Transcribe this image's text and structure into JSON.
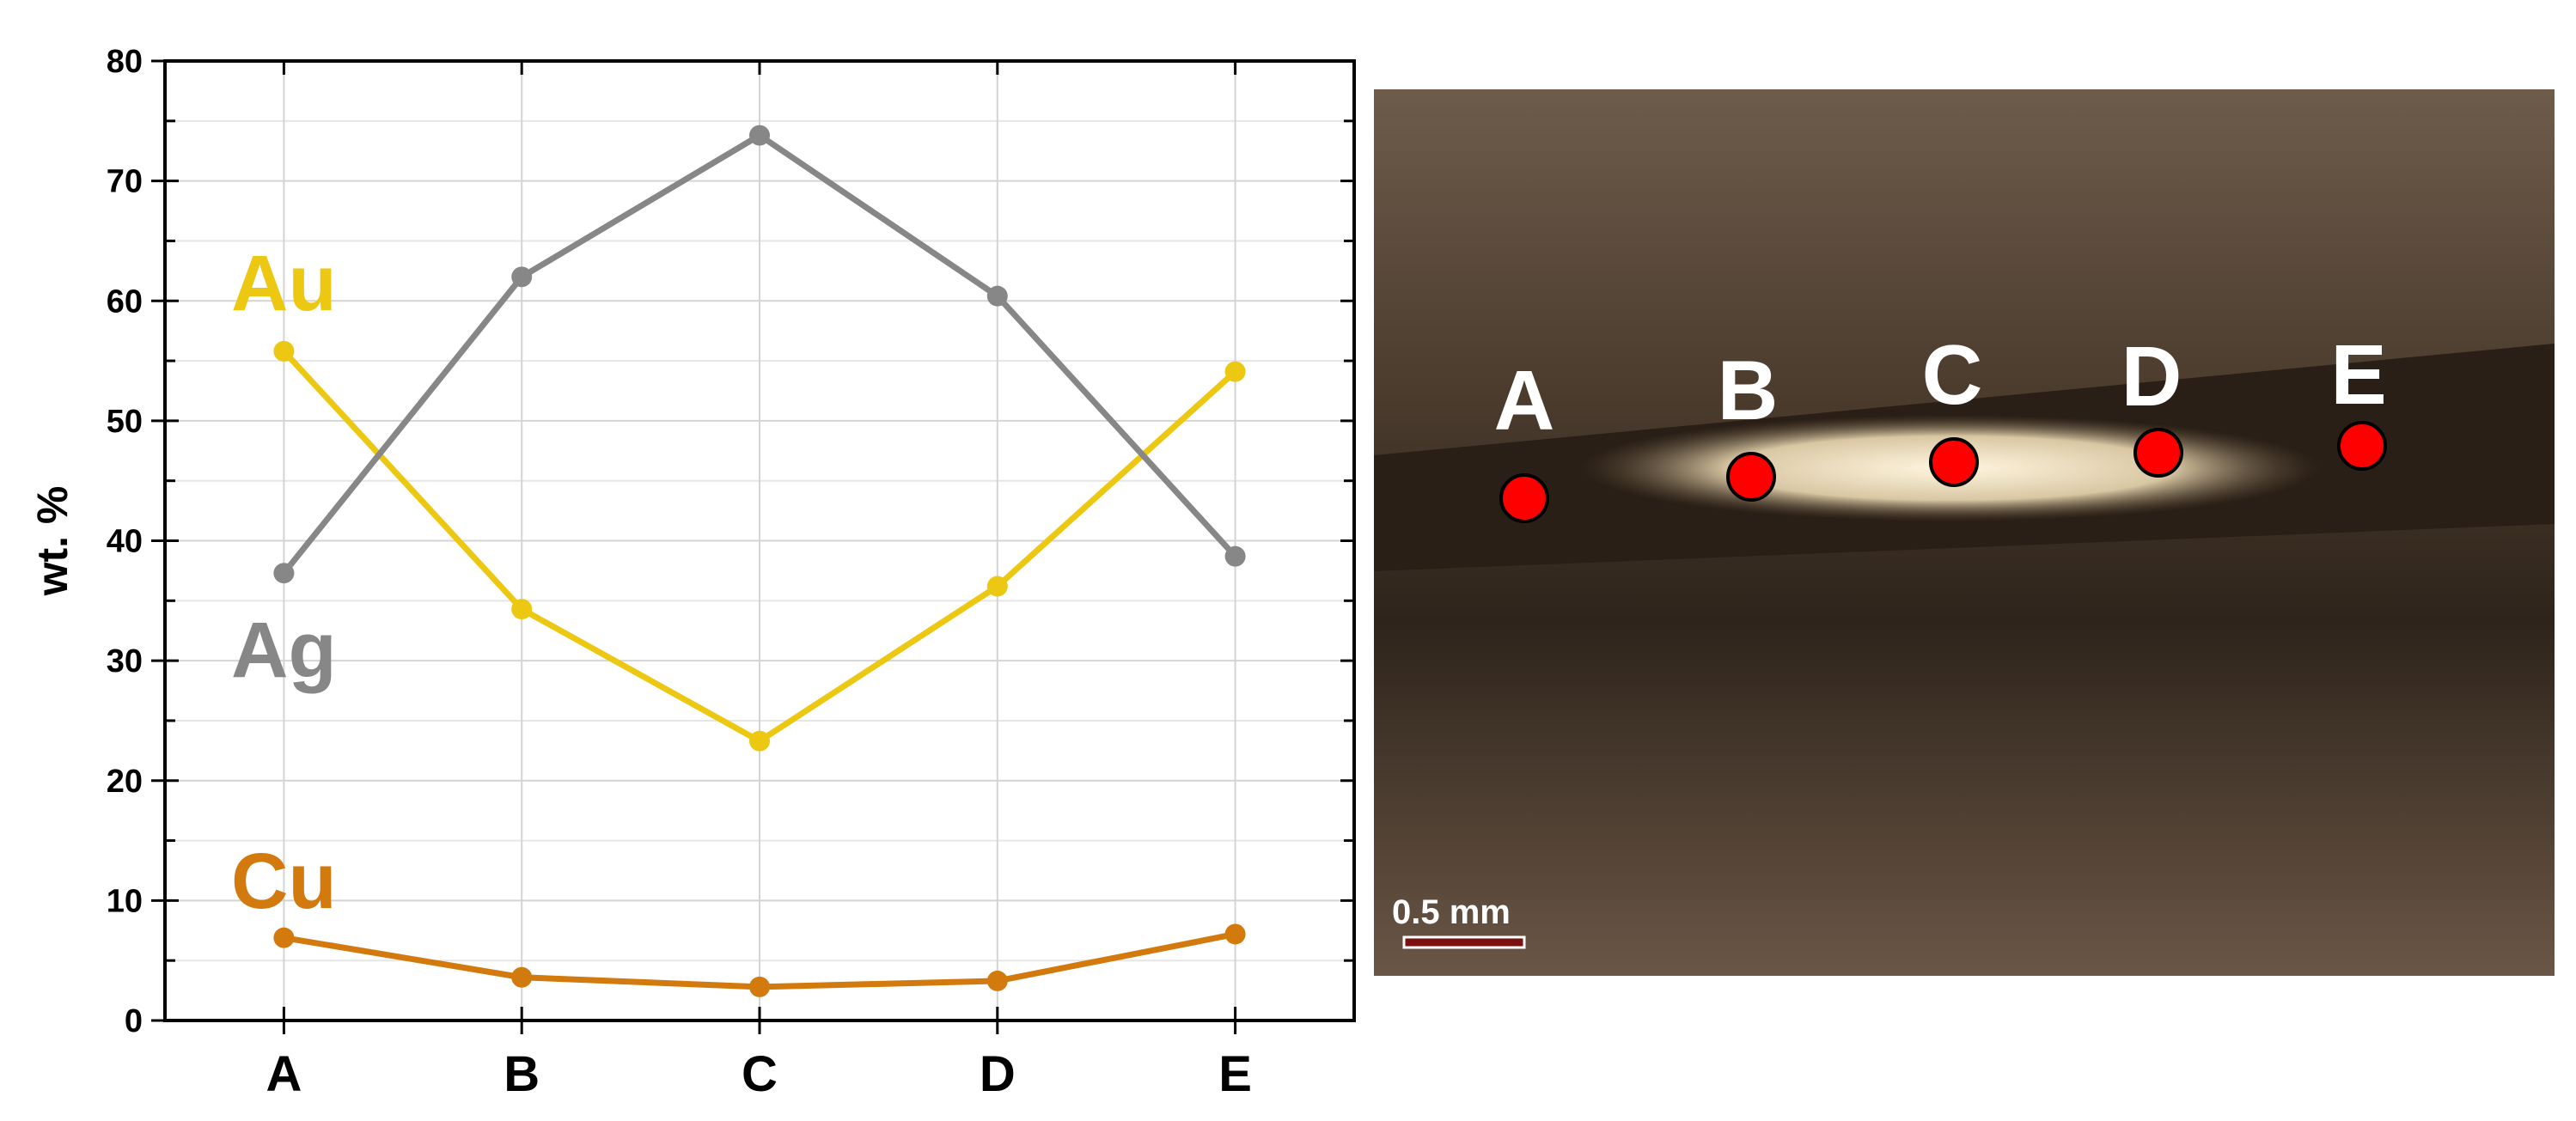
{
  "chart_data": {
    "type": "line",
    "ylabel": "wt. %",
    "categories": [
      "A",
      "B",
      "C",
      "D",
      "E"
    ],
    "series": [
      {
        "name": "Au",
        "color": "#ecc813",
        "values": [
          55.8,
          34.3,
          23.3,
          36.2,
          54.1
        ]
      },
      {
        "name": "Ag",
        "color": "#878787",
        "values": [
          37.3,
          62.0,
          73.8,
          60.4,
          38.7
        ]
      },
      {
        "name": "Cu",
        "color": "#d27a0e",
        "values": [
          6.9,
          3.6,
          2.8,
          3.3,
          7.2
        ]
      }
    ],
    "ylim": [
      0,
      80
    ],
    "yticks": [
      0,
      10,
      20,
      30,
      40,
      50,
      60,
      70,
      80
    ],
    "yminorticks": [
      5,
      15,
      25,
      35,
      45,
      55,
      65,
      75
    ],
    "grid": true
  },
  "image": {
    "scale_bar": "0.5 mm"
  }
}
